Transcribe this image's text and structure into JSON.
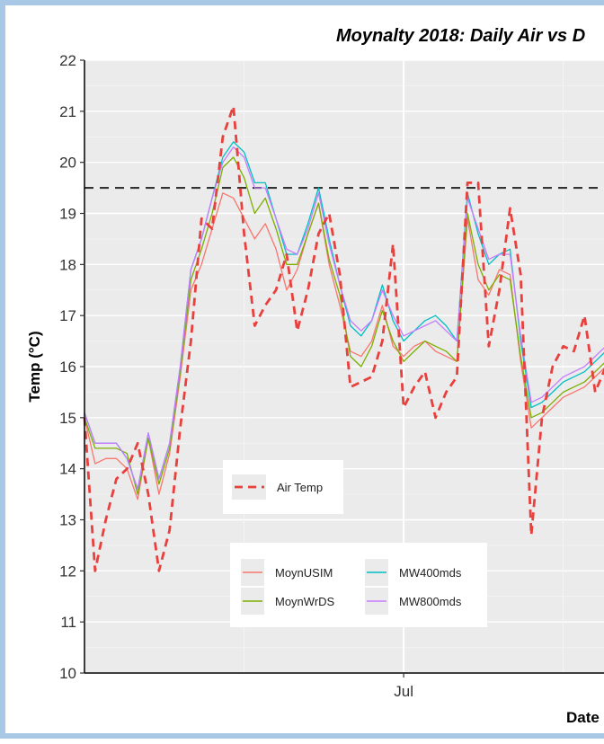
{
  "chart_data": {
    "type": "line",
    "title": "Moynalty 2018: Daily Air vs D",
    "xlabel": "Date",
    "ylabel": "Temp (°C)",
    "ylim": [
      10,
      22
    ],
    "yticks": [
      10,
      11,
      12,
      13,
      14,
      15,
      16,
      17,
      18,
      19,
      20,
      21,
      22
    ],
    "xticks": [
      {
        "label": "Jul",
        "day": 30
      }
    ],
    "xlim": [
      0,
      49
    ],
    "grid": true,
    "threshold": 19.5,
    "x": [
      0,
      1,
      2,
      3,
      4,
      5,
      6,
      7,
      8,
      9,
      10,
      11,
      12,
      13,
      14,
      15,
      16,
      17,
      18,
      19,
      20,
      21,
      22,
      23,
      24,
      25,
      26,
      27,
      28,
      29,
      30,
      31,
      32,
      33,
      34,
      35,
      36,
      37,
      38,
      39,
      40,
      41,
      42,
      43,
      44,
      45,
      46,
      47,
      48,
      49
    ],
    "legends": [
      {
        "items": [
          {
            "name": "Air Temp",
            "series": "air"
          }
        ]
      },
      {
        "items": [
          {
            "name": "MoynUSIM",
            "series": "usim"
          },
          {
            "name": "MoynWrDS",
            "series": "wrds"
          },
          {
            "name": "MW400mds",
            "series": "mw400"
          },
          {
            "name": "MW800mds",
            "series": "mw800"
          }
        ]
      }
    ],
    "series": [
      {
        "key": "air",
        "name": "Air Temp",
        "color": "#e8403d",
        "dash": true,
        "values": [
          15.0,
          12.0,
          13.0,
          13.8,
          14.0,
          14.5,
          13.5,
          12.0,
          12.8,
          14.8,
          16.5,
          18.9,
          18.7,
          20.5,
          21.1,
          18.6,
          16.8,
          17.2,
          17.5,
          18.2,
          16.7,
          17.5,
          18.6,
          19.0,
          17.8,
          15.6,
          15.7,
          15.8,
          16.5,
          18.4,
          15.2,
          15.6,
          15.9,
          15.0,
          15.5,
          15.8,
          19.6,
          19.6,
          16.4,
          17.5,
          19.1,
          17.8,
          12.7,
          15.0,
          16.0,
          16.4,
          16.3,
          17.0,
          15.5,
          16.0
        ]
      },
      {
        "key": "usim",
        "name": "MoynUSIM",
        "color": "#f8766d",
        "values": [
          15.0,
          14.1,
          14.2,
          14.2,
          14.0,
          13.4,
          14.6,
          13.5,
          14.3,
          15.8,
          17.5,
          18.0,
          18.7,
          19.4,
          19.3,
          18.9,
          18.5,
          18.8,
          18.3,
          17.5,
          17.9,
          18.6,
          19.2,
          18.0,
          17.2,
          16.3,
          16.2,
          16.5,
          17.2,
          16.4,
          16.2,
          16.4,
          16.5,
          16.3,
          16.2,
          16.1,
          18.9,
          17.7,
          17.4,
          17.9,
          17.8,
          16.1,
          14.8,
          15.0,
          15.2,
          15.4,
          15.5,
          15.6,
          15.8,
          16.0
        ]
      },
      {
        "key": "wrds",
        "name": "MoynWrDS",
        "color": "#7cae00",
        "values": [
          15.0,
          14.4,
          14.4,
          14.4,
          14.3,
          13.5,
          14.6,
          13.7,
          14.4,
          15.9,
          17.7,
          18.3,
          19.0,
          19.9,
          20.1,
          19.7,
          19.0,
          19.3,
          18.7,
          18.0,
          18.0,
          18.6,
          19.2,
          18.1,
          17.4,
          16.2,
          16.0,
          16.4,
          17.1,
          16.5,
          16.1,
          16.3,
          16.5,
          16.4,
          16.3,
          16.1,
          19.0,
          18.0,
          17.5,
          17.8,
          17.7,
          16.2,
          15.0,
          15.1,
          15.3,
          15.5,
          15.6,
          15.7,
          15.9,
          16.1
        ]
      },
      {
        "key": "mw400",
        "name": "MW400mds",
        "color": "#00bfc4",
        "values": [
          15.1,
          14.5,
          14.5,
          14.5,
          14.2,
          13.6,
          14.7,
          13.8,
          14.5,
          16.0,
          17.9,
          18.5,
          19.3,
          20.1,
          20.4,
          20.2,
          19.6,
          19.6,
          18.9,
          18.2,
          18.2,
          18.8,
          19.5,
          18.5,
          17.6,
          16.8,
          16.6,
          16.9,
          17.6,
          16.9,
          16.5,
          16.7,
          16.9,
          17.0,
          16.8,
          16.5,
          19.4,
          18.6,
          18.0,
          18.2,
          18.3,
          16.5,
          15.2,
          15.3,
          15.5,
          15.7,
          15.8,
          15.9,
          16.1,
          16.3
        ]
      },
      {
        "key": "mw800",
        "name": "MW800mds",
        "color": "#c77cff",
        "values": [
          15.1,
          14.5,
          14.5,
          14.5,
          14.2,
          13.6,
          14.7,
          13.8,
          14.5,
          16.0,
          17.9,
          18.5,
          19.3,
          20.0,
          20.3,
          20.1,
          19.5,
          19.5,
          18.9,
          18.3,
          18.2,
          18.7,
          19.4,
          18.4,
          17.6,
          16.9,
          16.7,
          16.9,
          17.5,
          17.0,
          16.6,
          16.7,
          16.8,
          16.9,
          16.7,
          16.5,
          19.3,
          18.7,
          18.1,
          18.2,
          18.2,
          16.6,
          15.3,
          15.4,
          15.6,
          15.8,
          15.9,
          16.0,
          16.2,
          16.4
        ]
      }
    ]
  }
}
